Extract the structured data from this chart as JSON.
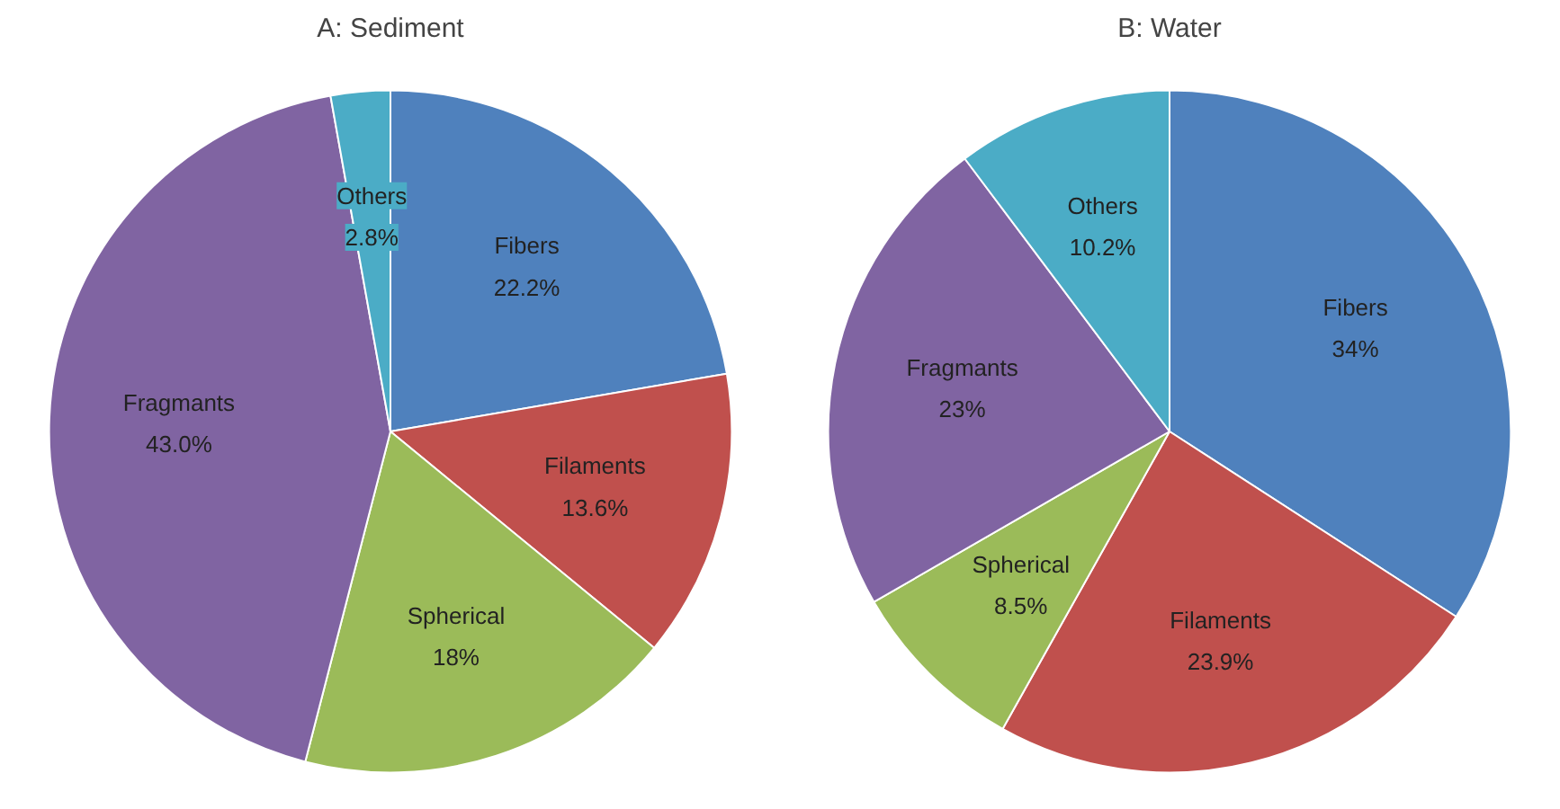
{
  "chart_data": [
    {
      "type": "pie",
      "title": "A: Sediment",
      "categories": [
        "Fibers",
        "Filaments",
        "Spherical",
        "Fragmants",
        "Others"
      ],
      "values": [
        22.2,
        13.6,
        18,
        43.0,
        2.8
      ],
      "value_labels": [
        "22.2%",
        "13.6%",
        "18%",
        "43.0%",
        "2.8%"
      ],
      "colors": [
        "#4f81bd",
        "#c0504d",
        "#9bbb59",
        "#8064a2",
        "#4bacc6"
      ]
    },
    {
      "type": "pie",
      "title": "B: Water",
      "categories": [
        "Fibers",
        "Filaments",
        "Spherical",
        "Fragmants",
        "Others"
      ],
      "values": [
        34,
        23.9,
        8.5,
        23,
        10.2
      ],
      "value_labels": [
        "34%",
        "23.9%",
        "8.5%",
        "23%",
        "10.2%"
      ],
      "colors": [
        "#4f81bd",
        "#c0504d",
        "#9bbb59",
        "#8064a2",
        "#4bacc6"
      ]
    }
  ]
}
